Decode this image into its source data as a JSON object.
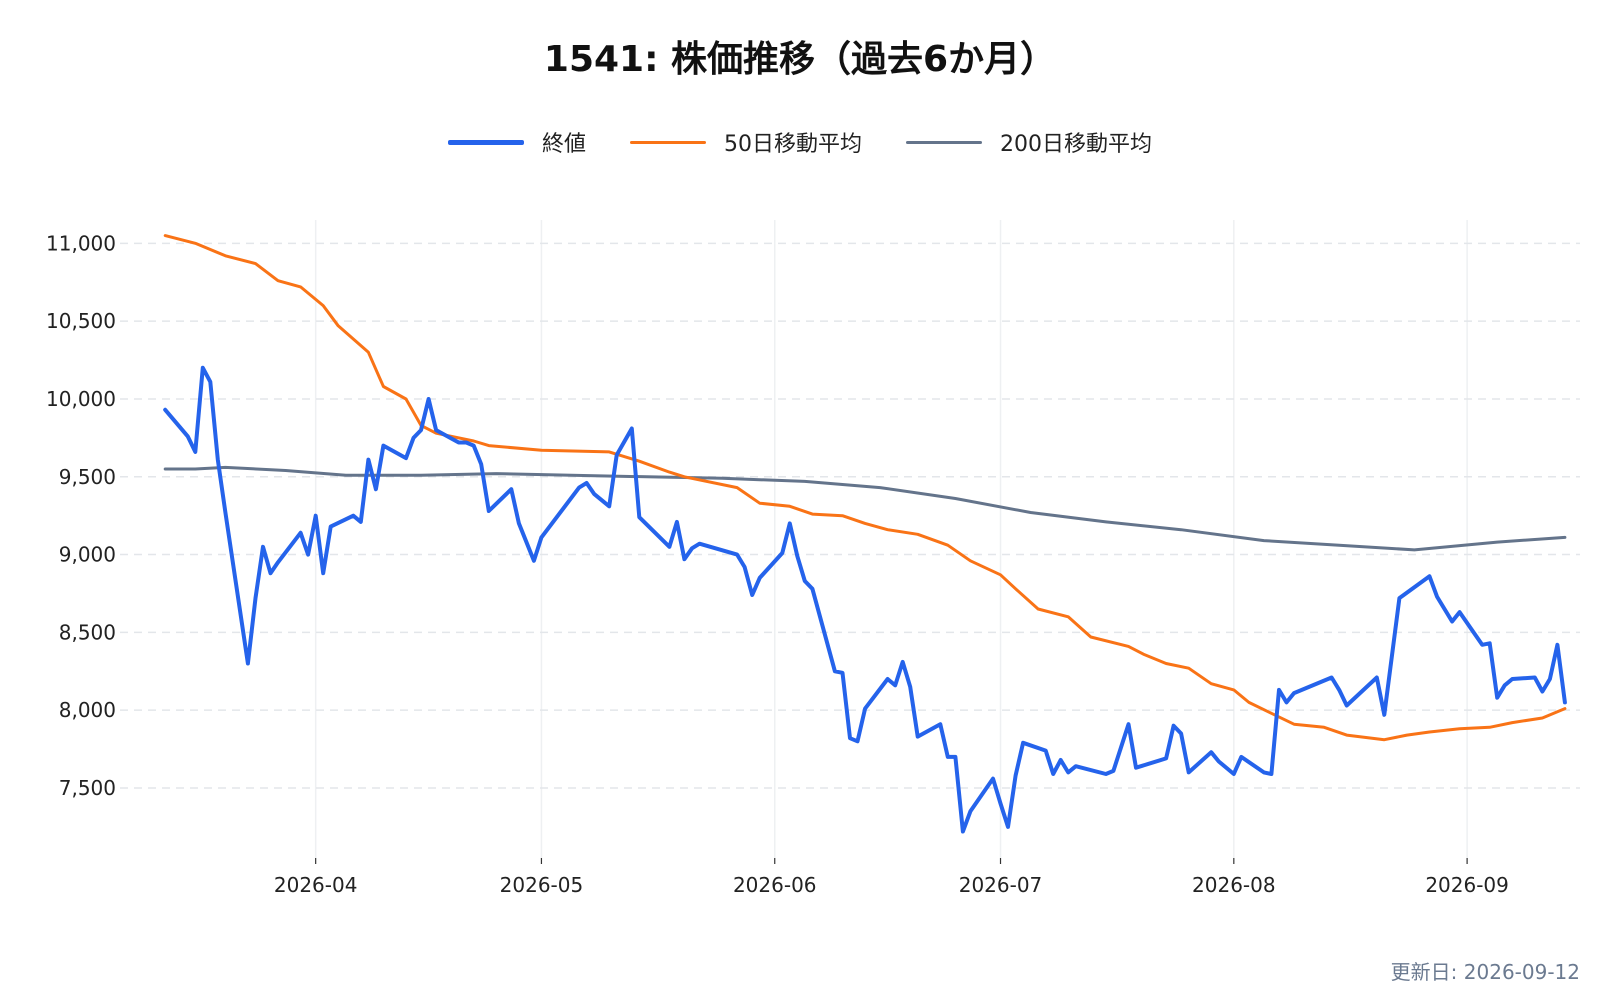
{
  "chart_data": {
    "type": "line",
    "title": "1541: 株価推移（過去6か月）",
    "xlabel": "",
    "ylabel": "",
    "x_ticks": [
      "2026-04",
      "2026-05",
      "2026-06",
      "2026-07",
      "2026-08",
      "2026-09"
    ],
    "y_ticks": [
      7500,
      8000,
      8500,
      9000,
      9500,
      10000,
      10500,
      11000
    ],
    "ylim": [
      7050,
      11150
    ],
    "xlim": [
      "2026-03-06",
      "2026-09-16"
    ],
    "grid": true,
    "legend_position": "top-center",
    "series": [
      {
        "name": "終値",
        "color": "#2563eb",
        "width": 4,
        "points": [
          [
            "2026-03-12",
            9930
          ],
          [
            "2026-03-15",
            9760
          ],
          [
            "2026-03-16",
            9660
          ],
          [
            "2026-03-17",
            10200
          ],
          [
            "2026-03-18",
            10110
          ],
          [
            "2026-03-19",
            9610
          ],
          [
            "2026-03-20",
            9270
          ],
          [
            "2026-03-23",
            8300
          ],
          [
            "2026-03-24",
            8720
          ],
          [
            "2026-03-25",
            9050
          ],
          [
            "2026-03-26",
            8880
          ],
          [
            "2026-03-27",
            8950
          ],
          [
            "2026-03-30",
            9140
          ],
          [
            "2026-03-31",
            9000
          ],
          [
            "2026-04-01",
            9250
          ],
          [
            "2026-04-02",
            8880
          ],
          [
            "2026-04-03",
            9180
          ],
          [
            "2026-04-06",
            9250
          ],
          [
            "2026-04-07",
            9210
          ],
          [
            "2026-04-08",
            9610
          ],
          [
            "2026-04-09",
            9420
          ],
          [
            "2026-04-10",
            9700
          ],
          [
            "2026-04-13",
            9620
          ],
          [
            "2026-04-14",
            9750
          ],
          [
            "2026-04-15",
            9800
          ],
          [
            "2026-04-16",
            10000
          ],
          [
            "2026-04-17",
            9800
          ],
          [
            "2026-04-20",
            9720
          ],
          [
            "2026-04-21",
            9720
          ],
          [
            "2026-04-22",
            9700
          ],
          [
            "2026-04-23",
            9580
          ],
          [
            "2026-04-24",
            9280
          ],
          [
            "2026-04-27",
            9420
          ],
          [
            "2026-04-28",
            9200
          ],
          [
            "2026-04-30",
            8960
          ],
          [
            "2026-05-01",
            9110
          ],
          [
            "2026-05-06",
            9430
          ],
          [
            "2026-05-07",
            9460
          ],
          [
            "2026-05-08",
            9390
          ],
          [
            "2026-05-10",
            9310
          ],
          [
            "2026-05-11",
            9640
          ],
          [
            "2026-05-13",
            9810
          ],
          [
            "2026-05-14",
            9240
          ],
          [
            "2026-05-18",
            9050
          ],
          [
            "2026-05-19",
            9210
          ],
          [
            "2026-05-20",
            8970
          ],
          [
            "2026-05-21",
            9040
          ],
          [
            "2026-05-22",
            9070
          ],
          [
            "2026-05-27",
            9000
          ],
          [
            "2026-05-28",
            8920
          ],
          [
            "2026-05-29",
            8740
          ],
          [
            "2026-05-30",
            8850
          ],
          [
            "2026-06-02",
            9010
          ],
          [
            "2026-06-03",
            9200
          ],
          [
            "2026-06-04",
            8990
          ],
          [
            "2026-06-05",
            8830
          ],
          [
            "2026-06-06",
            8780
          ],
          [
            "2026-06-09",
            8250
          ],
          [
            "2026-06-10",
            8240
          ],
          [
            "2026-06-11",
            7820
          ],
          [
            "2026-06-12",
            7800
          ],
          [
            "2026-06-13",
            8010
          ],
          [
            "2026-06-16",
            8200
          ],
          [
            "2026-06-17",
            8160
          ],
          [
            "2026-06-18",
            8310
          ],
          [
            "2026-06-19",
            8150
          ],
          [
            "2026-06-20",
            7830
          ],
          [
            "2026-06-23",
            7910
          ],
          [
            "2026-06-24",
            7700
          ],
          [
            "2026-06-25",
            7700
          ],
          [
            "2026-06-26",
            7220
          ],
          [
            "2026-06-27",
            7350
          ],
          [
            "2026-06-30",
            7560
          ],
          [
            "2026-07-01",
            7400
          ],
          [
            "2026-07-02",
            7250
          ],
          [
            "2026-07-03",
            7580
          ],
          [
            "2026-07-04",
            7790
          ],
          [
            "2026-07-07",
            7740
          ],
          [
            "2026-07-08",
            7590
          ],
          [
            "2026-07-09",
            7680
          ],
          [
            "2026-07-10",
            7600
          ],
          [
            "2026-07-11",
            7640
          ],
          [
            "2026-07-15",
            7590
          ],
          [
            "2026-07-16",
            7610
          ],
          [
            "2026-07-18",
            7910
          ],
          [
            "2026-07-19",
            7630
          ],
          [
            "2026-07-23",
            7690
          ],
          [
            "2026-07-24",
            7900
          ],
          [
            "2026-07-25",
            7850
          ],
          [
            "2026-07-26",
            7600
          ],
          [
            "2026-07-29",
            7730
          ],
          [
            "2026-07-30",
            7670
          ],
          [
            "2026-08-01",
            7590
          ],
          [
            "2026-08-02",
            7700
          ],
          [
            "2026-08-05",
            7600
          ],
          [
            "2026-08-06",
            7590
          ],
          [
            "2026-08-07",
            8130
          ],
          [
            "2026-08-08",
            8050
          ],
          [
            "2026-08-09",
            8110
          ],
          [
            "2026-08-14",
            8210
          ],
          [
            "2026-08-15",
            8130
          ],
          [
            "2026-08-16",
            8030
          ],
          [
            "2026-08-20",
            8210
          ],
          [
            "2026-08-21",
            7970
          ],
          [
            "2026-08-23",
            8720
          ],
          [
            "2026-08-27",
            8860
          ],
          [
            "2026-08-28",
            8730
          ],
          [
            "2026-08-30",
            8570
          ],
          [
            "2026-08-31",
            8630
          ],
          [
            "2026-09-03",
            8420
          ],
          [
            "2026-09-04",
            8430
          ],
          [
            "2026-09-05",
            8080
          ],
          [
            "2026-09-06",
            8160
          ],
          [
            "2026-09-07",
            8200
          ],
          [
            "2026-09-10",
            8210
          ],
          [
            "2026-09-11",
            8120
          ],
          [
            "2026-09-12",
            8200
          ],
          [
            "2026-09-13",
            8420
          ],
          [
            "2026-09-14",
            8050
          ]
        ]
      },
      {
        "name": "50日移動平均",
        "color": "#f97316",
        "width": 3,
        "points": [
          [
            "2026-03-12",
            11050
          ],
          [
            "2026-03-16",
            11000
          ],
          [
            "2026-03-20",
            10920
          ],
          [
            "2026-03-24",
            10870
          ],
          [
            "2026-03-27",
            10760
          ],
          [
            "2026-03-30",
            10720
          ],
          [
            "2026-04-02",
            10600
          ],
          [
            "2026-04-04",
            10470
          ],
          [
            "2026-04-08",
            10300
          ],
          [
            "2026-04-10",
            10080
          ],
          [
            "2026-04-13",
            10000
          ],
          [
            "2026-04-15",
            9830
          ],
          [
            "2026-04-17",
            9780
          ],
          [
            "2026-04-22",
            9730
          ],
          [
            "2026-04-24",
            9700
          ],
          [
            "2026-05-01",
            9670
          ],
          [
            "2026-05-10",
            9660
          ],
          [
            "2026-05-14",
            9600
          ],
          [
            "2026-05-18",
            9530
          ],
          [
            "2026-05-20",
            9500
          ],
          [
            "2026-05-27",
            9430
          ],
          [
            "2026-05-30",
            9330
          ],
          [
            "2026-06-03",
            9310
          ],
          [
            "2026-06-06",
            9260
          ],
          [
            "2026-06-10",
            9250
          ],
          [
            "2026-06-13",
            9200
          ],
          [
            "2026-06-16",
            9160
          ],
          [
            "2026-06-20",
            9130
          ],
          [
            "2026-06-24",
            9060
          ],
          [
            "2026-06-27",
            8960
          ],
          [
            "2026-07-01",
            8870
          ],
          [
            "2026-07-03",
            8780
          ],
          [
            "2026-07-06",
            8650
          ],
          [
            "2026-07-10",
            8600
          ],
          [
            "2026-07-13",
            8470
          ],
          [
            "2026-07-18",
            8410
          ],
          [
            "2026-07-20",
            8360
          ],
          [
            "2026-07-23",
            8300
          ],
          [
            "2026-07-26",
            8270
          ],
          [
            "2026-07-29",
            8170
          ],
          [
            "2026-08-01",
            8130
          ],
          [
            "2026-08-03",
            8050
          ],
          [
            "2026-08-06",
            7980
          ],
          [
            "2026-08-09",
            7910
          ],
          [
            "2026-08-13",
            7890
          ],
          [
            "2026-08-16",
            7840
          ],
          [
            "2026-08-21",
            7810
          ],
          [
            "2026-08-24",
            7840
          ],
          [
            "2026-08-27",
            7860
          ],
          [
            "2026-08-31",
            7880
          ],
          [
            "2026-09-04",
            7890
          ],
          [
            "2026-09-07",
            7920
          ],
          [
            "2026-09-11",
            7950
          ],
          [
            "2026-09-14",
            8010
          ]
        ]
      },
      {
        "name": "200日移動平均",
        "color": "#64748b",
        "width": 3,
        "points": [
          [
            "2026-03-12",
            9550
          ],
          [
            "2026-03-16",
            9550
          ],
          [
            "2026-03-20",
            9560
          ],
          [
            "2026-03-28",
            9540
          ],
          [
            "2026-04-05",
            9510
          ],
          [
            "2026-04-15",
            9510
          ],
          [
            "2026-04-25",
            9520
          ],
          [
            "2026-05-05",
            9510
          ],
          [
            "2026-05-15",
            9500
          ],
          [
            "2026-05-25",
            9490
          ],
          [
            "2026-06-05",
            9470
          ],
          [
            "2026-06-15",
            9430
          ],
          [
            "2026-06-25",
            9360
          ],
          [
            "2026-07-05",
            9270
          ],
          [
            "2026-07-15",
            9210
          ],
          [
            "2026-07-25",
            9160
          ],
          [
            "2026-08-05",
            9090
          ],
          [
            "2026-08-15",
            9060
          ],
          [
            "2026-08-25",
            9030
          ],
          [
            "2026-09-05",
            9080
          ],
          [
            "2026-09-14",
            9110
          ]
        ]
      }
    ]
  },
  "footer": {
    "updated_text": "更新日: 2026-09-12"
  }
}
